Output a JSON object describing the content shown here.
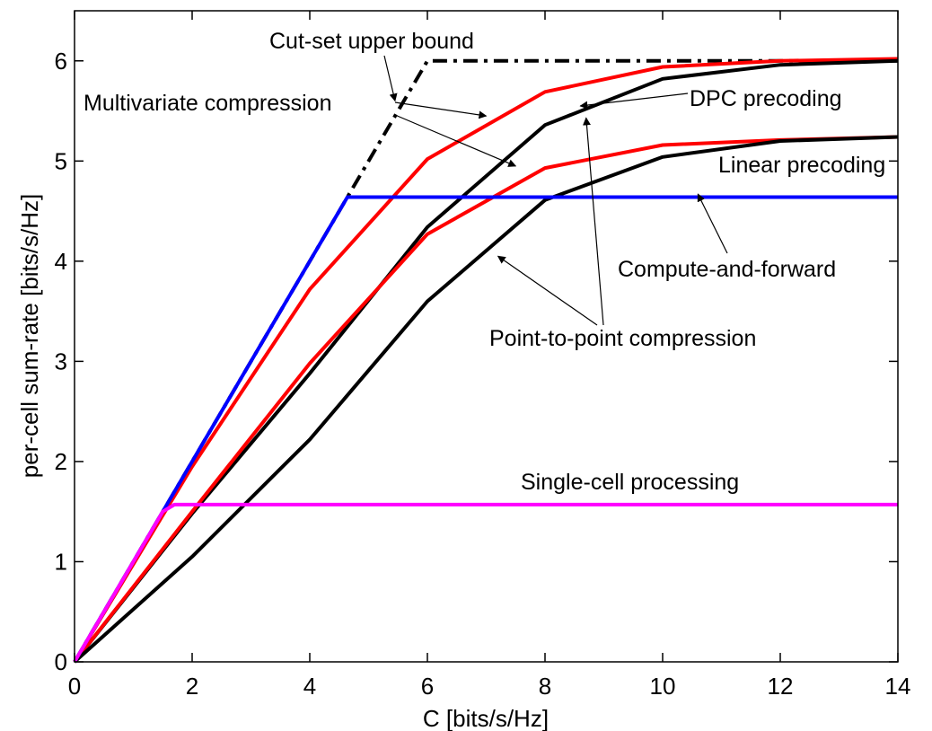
{
  "chart_data": {
    "type": "line",
    "xlabel": "C [bits/s/Hz]",
    "ylabel": "per-cell sum-rate [bits/s/Hz]",
    "xlim": [
      0,
      14
    ],
    "ylim": [
      0,
      6.5
    ],
    "xticks": [
      0,
      2,
      4,
      6,
      8,
      10,
      12,
      14
    ],
    "yticks": [
      0,
      1,
      2,
      3,
      4,
      5,
      6
    ],
    "grid": false,
    "colors": {
      "black": "#000000",
      "red": "#ff0000",
      "blue": "#0000ff",
      "magenta": "#ff00ff"
    },
    "series": [
      {
        "color": "#000000",
        "style": "dashdot",
        "x": [
          0,
          6,
          14
        ],
        "y": [
          0,
          6.0,
          6.0
        ]
      },
      {
        "color": "#ff0000",
        "style": "solid",
        "x": [
          0,
          2,
          4,
          6,
          8,
          10,
          12,
          14
        ],
        "y": [
          0,
          1.95,
          3.72,
          5.02,
          5.69,
          5.94,
          6.0,
          6.02
        ]
      },
      {
        "color": "#000000",
        "style": "solid",
        "x": [
          0,
          2,
          4,
          6,
          8,
          10,
          12,
          14
        ],
        "y": [
          0,
          1.48,
          2.88,
          4.34,
          5.36,
          5.82,
          5.96,
          6.0
        ]
      },
      {
        "color": "#ff0000",
        "style": "solid",
        "x": [
          0,
          2,
          4,
          6,
          8,
          10,
          12,
          14
        ],
        "y": [
          0,
          1.5,
          2.98,
          4.27,
          4.93,
          5.16,
          5.21,
          5.24
        ]
      },
      {
        "color": "#000000",
        "style": "solid",
        "x": [
          0,
          2,
          4,
          6,
          8,
          10,
          12,
          14
        ],
        "y": [
          0,
          1.05,
          2.22,
          3.6,
          4.61,
          5.04,
          5.2,
          5.24
        ]
      },
      {
        "color": "#0000ff",
        "style": "solid",
        "x": [
          0,
          4.64,
          14
        ],
        "y": [
          0,
          4.64,
          4.64
        ]
      },
      {
        "color": "#ff00ff",
        "style": "solid",
        "x": [
          0,
          1.5,
          1.7,
          14
        ],
        "y": [
          0,
          1.5,
          1.57,
          1.57
        ]
      }
    ],
    "annotations": [
      {
        "text": "Cut-set upper bound",
        "arrows": [
          [
            5.45,
            5.6
          ]
        ]
      },
      {
        "text": "Multivariate compression",
        "arrows": [
          [
            7.0,
            5.45
          ],
          [
            7.5,
            4.95
          ]
        ]
      },
      {
        "text": "DPC precoding",
        "arrows": [
          [
            8.6,
            5.55
          ]
        ]
      },
      {
        "text": "Linear precoding",
        "arrows": []
      },
      {
        "text": "Compute-and-forward",
        "arrows": [
          [
            10.6,
            4.67
          ]
        ]
      },
      {
        "text": "Point-to-point compression",
        "arrows": [
          [
            8.7,
            5.43
          ],
          [
            7.2,
            4.05
          ]
        ]
      },
      {
        "text": "Single-cell processing",
        "arrows": []
      }
    ]
  }
}
